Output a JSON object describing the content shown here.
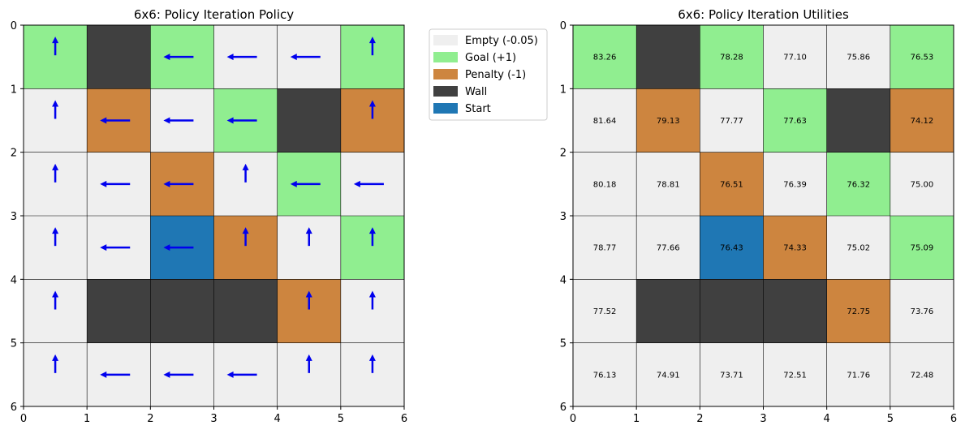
{
  "grid_size": 6,
  "colors": {
    "empty": "#efefef",
    "goal": "#90ee90",
    "penalty": "#cd853f",
    "wall": "#404040",
    "start": "#1f77b4",
    "arrow": "#0000ee",
    "grid_line": "#000000"
  },
  "legend": {
    "placement": "upper-left-outside-right-of-left-panel",
    "items": [
      {
        "key": "empty",
        "label": "Empty (-0.05)",
        "color": "#efefef"
      },
      {
        "key": "goal",
        "label": "Goal (+1)",
        "color": "#90ee90"
      },
      {
        "key": "penalty",
        "label": "Penalty (-1)",
        "color": "#cd853f"
      },
      {
        "key": "wall",
        "label": "Wall",
        "color": "#404040"
      },
      {
        "key": "start",
        "label": "Start",
        "color": "#1f77b4"
      }
    ]
  },
  "chart_data": [
    {
      "type": "heatmap",
      "title": "6x6: Policy Iteration Policy",
      "xlim": [
        0,
        6
      ],
      "ylim": [
        6,
        0
      ],
      "x_ticks": [
        "0",
        "1",
        "2",
        "3",
        "4",
        "5",
        "6"
      ],
      "y_ticks": [
        "0",
        "1",
        "2",
        "3",
        "4",
        "5",
        "6"
      ],
      "grid": true,
      "cells": [
        [
          "goal",
          "wall",
          "goal",
          "empty",
          "empty",
          "goal"
        ],
        [
          "empty",
          "penalty",
          "empty",
          "goal",
          "wall",
          "penalty"
        ],
        [
          "empty",
          "empty",
          "penalty",
          "empty",
          "goal",
          "empty"
        ],
        [
          "empty",
          "empty",
          "start",
          "penalty",
          "empty",
          "goal"
        ],
        [
          "empty",
          "wall",
          "wall",
          "wall",
          "penalty",
          "empty"
        ],
        [
          "empty",
          "empty",
          "empty",
          "empty",
          "empty",
          "empty"
        ]
      ],
      "policy": [
        [
          "up",
          "",
          "left",
          "left",
          "left",
          "up"
        ],
        [
          "up",
          "left",
          "left",
          "left",
          "",
          "up"
        ],
        [
          "up",
          "left",
          "left",
          "up",
          "left",
          "left"
        ],
        [
          "up",
          "left",
          "left",
          "up",
          "up",
          "up"
        ],
        [
          "up",
          "",
          "",
          "",
          "up",
          "up"
        ],
        [
          "up",
          "left",
          "left",
          "left",
          "up",
          "up"
        ]
      ]
    },
    {
      "type": "heatmap",
      "title": "6x6: Policy Iteration Utilities",
      "xlim": [
        0,
        6
      ],
      "ylim": [
        6,
        0
      ],
      "x_ticks": [
        "0",
        "1",
        "2",
        "3",
        "4",
        "5",
        "6"
      ],
      "y_ticks": [
        "0",
        "1",
        "2",
        "3",
        "4",
        "5",
        "6"
      ],
      "grid": true,
      "cells": [
        [
          "goal",
          "wall",
          "goal",
          "empty",
          "empty",
          "goal"
        ],
        [
          "empty",
          "penalty",
          "empty",
          "goal",
          "wall",
          "penalty"
        ],
        [
          "empty",
          "empty",
          "penalty",
          "empty",
          "goal",
          "empty"
        ],
        [
          "empty",
          "empty",
          "start",
          "penalty",
          "empty",
          "goal"
        ],
        [
          "empty",
          "wall",
          "wall",
          "wall",
          "penalty",
          "empty"
        ],
        [
          "empty",
          "empty",
          "empty",
          "empty",
          "empty",
          "empty"
        ]
      ],
      "utilities": [
        [
          "83.26",
          "",
          "78.28",
          "77.10",
          "75.86",
          "76.53"
        ],
        [
          "81.64",
          "79.13",
          "77.77",
          "77.63",
          "",
          "74.12"
        ],
        [
          "80.18",
          "78.81",
          "76.51",
          "76.39",
          "76.32",
          "75.00"
        ],
        [
          "78.77",
          "77.66",
          "76.43",
          "74.33",
          "75.02",
          "75.09"
        ],
        [
          "77.52",
          "",
          "",
          "",
          "72.75",
          "73.76"
        ],
        [
          "76.13",
          "74.91",
          "73.71",
          "72.51",
          "71.76",
          "72.48"
        ]
      ]
    }
  ]
}
